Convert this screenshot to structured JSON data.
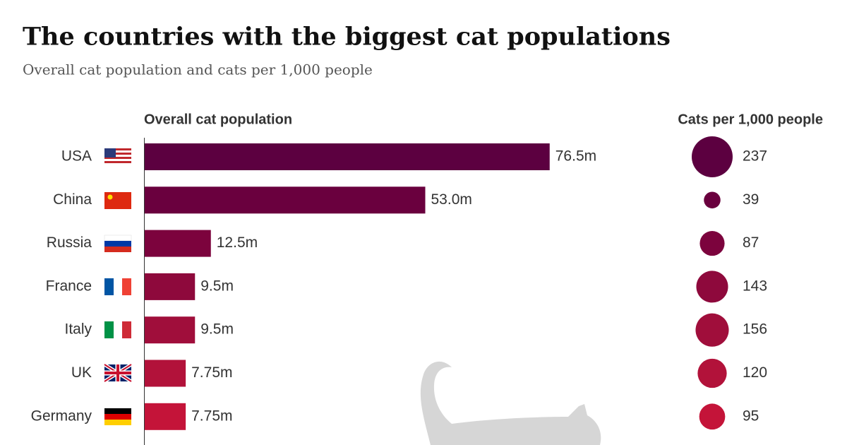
{
  "title": "The countries with the biggest cat populations",
  "subtitle": "Overall cat population and cats per 1,000 people",
  "chart_data": [
    {
      "type": "bar",
      "title": "Overall cat population",
      "categories": [
        "USA",
        "China",
        "Russia",
        "France",
        "Italy",
        "UK",
        "Germany"
      ],
      "values": [
        76.5,
        53.0,
        12.5,
        9.5,
        9.5,
        7.75,
        7.75
      ],
      "value_labels": [
        "76.5m",
        "53.0m",
        "12.5m",
        "9.5m",
        "9.5m",
        "7.75m",
        "7.75m"
      ],
      "colors": [
        "#5c0040",
        "#6a003e",
        "#7c033d",
        "#8e093c",
        "#a00e3b",
        "#b2123a",
        "#c41439"
      ]
    },
    {
      "type": "bubble",
      "title": "Cats per 1,000 people",
      "values": [
        237,
        39,
        87,
        143,
        156,
        120,
        95
      ],
      "colors": [
        "#5c0040",
        "#6a003e",
        "#7c033d",
        "#8e093c",
        "#a00e3b",
        "#b2123a",
        "#c41439"
      ]
    }
  ]
}
